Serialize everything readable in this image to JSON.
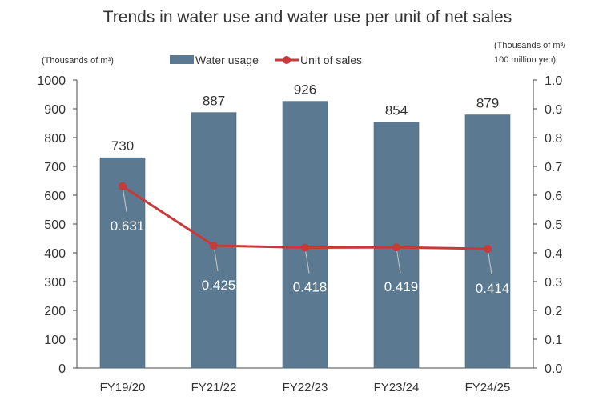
{
  "chart_data": {
    "type": "bar+line",
    "title": "Trends in water use and water use per unit of net sales",
    "ylabel_left": "(Thousands of m³)",
    "ylabel_right_line1": "(Thousands of m³/",
    "ylabel_right_line2": "100 million yen)",
    "categories": [
      "FY19/20",
      "FY21/22",
      "FY22/23",
      "FY23/24",
      "FY24/25"
    ],
    "series": [
      {
        "name": "Water usage",
        "type": "bar",
        "axis": "left",
        "values": [
          730,
          887,
          926,
          854,
          879
        ],
        "color": "#5b7a92"
      },
      {
        "name": "Unit of sales",
        "type": "line",
        "axis": "right",
        "values": [
          0.631,
          0.425,
          0.418,
          0.419,
          0.414
        ],
        "color": "#c8393a"
      }
    ],
    "ylim_left": [
      0,
      1000
    ],
    "yticks_left": [
      "0",
      "100",
      "200",
      "300",
      "400",
      "500",
      "600",
      "700",
      "800",
      "900",
      "1000"
    ],
    "ylim_right": [
      0,
      1.0
    ],
    "yticks_right": [
      "0.0",
      "0.1",
      "0.2",
      "0.3",
      "0.4",
      "0.5",
      "0.6",
      "0.7",
      "0.8",
      "0.9",
      "1.0"
    ],
    "bar_labels": [
      "730",
      "887",
      "926",
      "854",
      "879"
    ],
    "line_labels": [
      "0.631",
      "0.425",
      "0.418",
      "0.419",
      "0.414"
    ],
    "legend_placement": "top-center",
    "grid": false
  }
}
